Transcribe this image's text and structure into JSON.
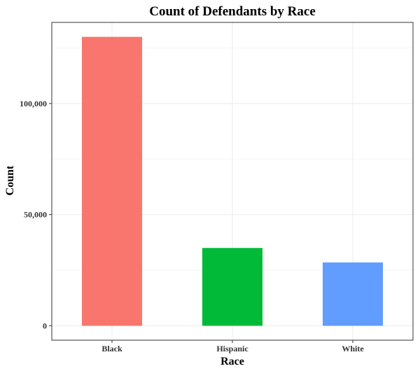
{
  "chart_data": {
    "type": "bar",
    "title": "Count of Defendants by Race",
    "xlabel": "Race",
    "ylabel": "Count",
    "categories": [
      "Black",
      "Hispanic",
      "White"
    ],
    "values": [
      130000,
      35000,
      28500
    ],
    "colors": [
      "#F8766D",
      "#00BA38",
      "#619CFF"
    ],
    "ylim": [
      -6500,
      136500
    ],
    "yticks": [
      0,
      50000,
      100000
    ],
    "ytick_labels": [
      "0",
      "50,000",
      "100,000"
    ],
    "grid": true,
    "legend": "none"
  }
}
